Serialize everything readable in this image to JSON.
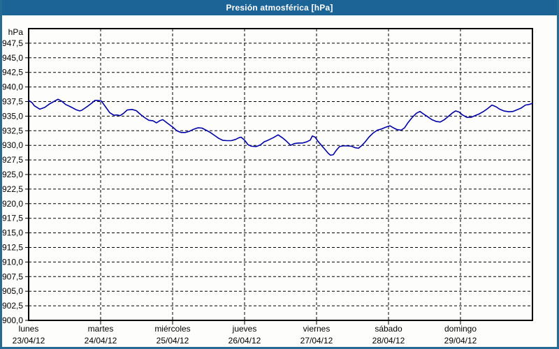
{
  "window": {
    "title": "Presión atmosférica [hPa]"
  },
  "colors": {
    "titlebar_bg": "#1c6396",
    "title_text": "#ffffff",
    "window_border": "#266b94",
    "background": "#fdfefb",
    "plot_frame": "#000000",
    "gridline": "#000000",
    "series_line": "#0000a8",
    "label_text": "#000000"
  },
  "chart_data": {
    "type": "line",
    "title": "Presión atmosférica [hPa]",
    "unit_label": "hPa",
    "ylabel": "hPa",
    "xlabel": "",
    "ylim": [
      900,
      950
    ],
    "ytick_step": 2.5,
    "grid": true,
    "legend_position": "none",
    "ytick_labels": [
      "947,5",
      "945,0",
      "942,5",
      "940,0",
      "937,5",
      "935,0",
      "932,5",
      "930,0",
      "927,5",
      "925,0",
      "922,5",
      "920,0",
      "917,5",
      "915,0",
      "912,5",
      "910,0",
      "907,5",
      "905,0",
      "902,5",
      "900,0"
    ],
    "x_axis_days": [
      {
        "name": "lunes",
        "date": "23/04/12"
      },
      {
        "name": "martes",
        "date": "24/04/12"
      },
      {
        "name": "miércoles",
        "date": "25/04/12"
      },
      {
        "name": "jueves",
        "date": "26/04/12"
      },
      {
        "name": "viernes",
        "date": "27/04/12"
      },
      {
        "name": "sábado",
        "date": "28/04/12"
      },
      {
        "name": "domingo",
        "date": "29/04/12"
      }
    ],
    "x_days": [
      0.0,
      0.049,
      0.078,
      0.155,
      0.223,
      0.291,
      0.35,
      0.408,
      0.466,
      0.515,
      0.583,
      0.66,
      0.709,
      0.738,
      0.796,
      0.825,
      0.874,
      0.922,
      0.951,
      1.01,
      1.068,
      1.126,
      1.184,
      1.223,
      1.272,
      1.32,
      1.369,
      1.437,
      1.495,
      1.553,
      1.612,
      1.67,
      1.728,
      1.777,
      1.826,
      1.864,
      1.913,
      1.971,
      2.0,
      2.058,
      2.117,
      2.175,
      2.233,
      2.291,
      2.35,
      2.408,
      2.466,
      2.524,
      2.583,
      2.641,
      2.699,
      2.757,
      2.816,
      2.874,
      2.922,
      2.951,
      3.0,
      3.049,
      3.097,
      3.165,
      3.223,
      3.272,
      3.33,
      3.398,
      3.466,
      3.524,
      3.583,
      3.641,
      3.689,
      3.748,
      3.806,
      3.864,
      3.913,
      3.942,
      3.981,
      4.019,
      4.068,
      4.117,
      4.165,
      4.194,
      4.233,
      4.272,
      4.32,
      4.369,
      4.427,
      4.485,
      4.534,
      4.583,
      4.631,
      4.67,
      4.728,
      4.786,
      4.845,
      4.903,
      4.961,
      5.019,
      5.068,
      5.117,
      5.175,
      5.223,
      5.272,
      5.33,
      5.388,
      5.437,
      5.495,
      5.544,
      5.602,
      5.66,
      5.718,
      5.777,
      5.835,
      5.893,
      5.932,
      5.981,
      6.029,
      6.087,
      6.146,
      6.204,
      6.262,
      6.32,
      6.379,
      6.437,
      6.495,
      6.544,
      6.602,
      6.67,
      6.728,
      6.786,
      6.845,
      6.903,
      6.951,
      7.0
    ],
    "values": [
      937.7,
      937.3,
      936.8,
      936.2,
      936.5,
      937.1,
      937.5,
      937.9,
      937.5,
      937.0,
      936.6,
      936.1,
      935.9,
      936.0,
      936.5,
      936.75,
      937.2,
      937.7,
      937.7,
      937.6,
      936.6,
      935.6,
      935.15,
      935.2,
      935.1,
      935.5,
      936.05,
      936.15,
      935.95,
      935.3,
      934.75,
      934.3,
      934.2,
      933.85,
      934.25,
      934.4,
      933.95,
      933.4,
      933.15,
      932.5,
      932.2,
      932.2,
      932.4,
      932.75,
      933.0,
      932.95,
      932.6,
      932.2,
      931.7,
      931.2,
      930.85,
      930.8,
      930.8,
      931.0,
      931.3,
      931.4,
      930.9,
      930.1,
      929.85,
      929.8,
      930.1,
      930.6,
      930.9,
      931.3,
      931.8,
      931.3,
      930.7,
      930.0,
      930.3,
      930.4,
      930.4,
      930.6,
      930.9,
      931.6,
      931.4,
      930.7,
      930.0,
      929.3,
      928.6,
      928.3,
      928.4,
      929.1,
      929.8,
      929.9,
      929.9,
      929.85,
      929.6,
      929.5,
      930.0,
      930.5,
      931.4,
      932.1,
      932.6,
      932.8,
      933.1,
      933.35,
      933.0,
      932.7,
      932.6,
      933.0,
      933.9,
      934.8,
      935.5,
      935.8,
      935.3,
      934.9,
      934.4,
      934.1,
      934.0,
      934.4,
      935.0,
      935.6,
      935.9,
      935.7,
      935.2,
      934.8,
      934.8,
      935.1,
      935.4,
      935.8,
      936.3,
      936.9,
      936.6,
      936.2,
      935.9,
      935.75,
      935.8,
      936.1,
      936.4,
      936.9,
      937.0,
      937.2
    ]
  }
}
